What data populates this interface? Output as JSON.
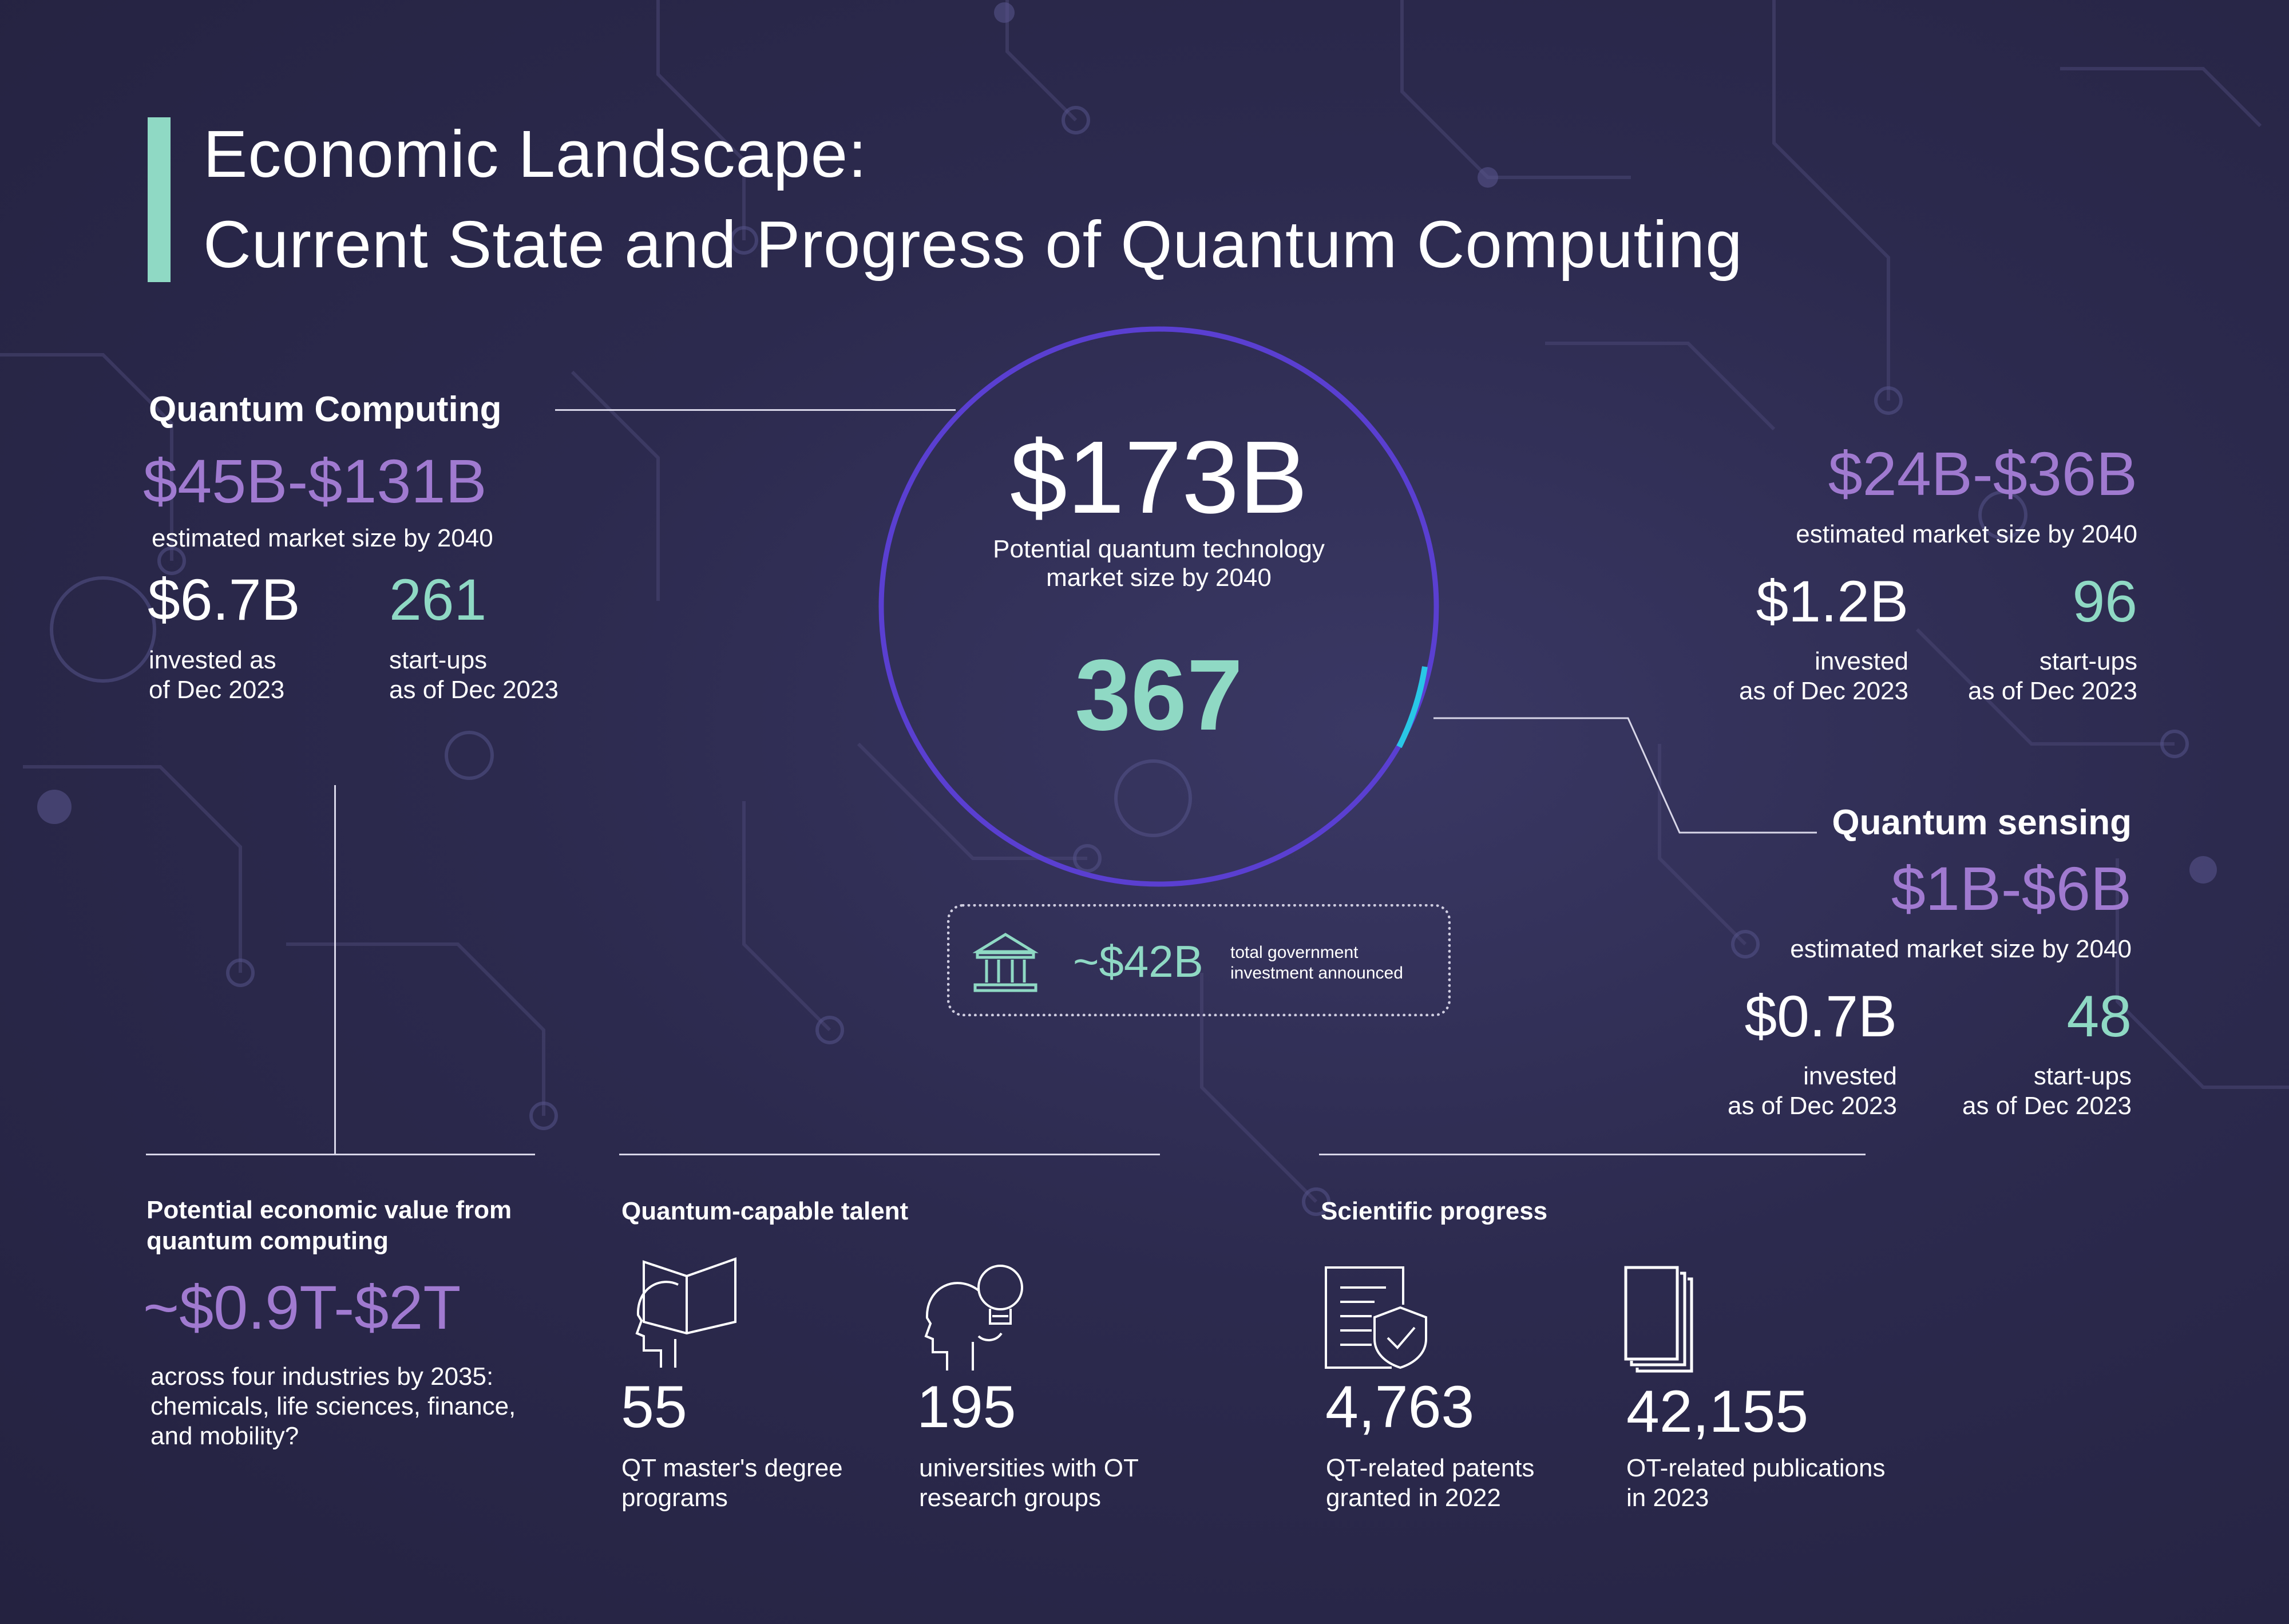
{
  "title": {
    "line1": "Economic Landscape:",
    "line2": "Current State and Progress of Quantum Computing"
  },
  "colors": {
    "accent": "#8fd9c4",
    "purple": "#a07ad0",
    "ring": "#5a3fd1",
    "ring_highlight": "#29c7e6"
  },
  "center": {
    "value": "$173B",
    "caption_line1": "Potential quantum technology",
    "caption_line2": "market size by 2040",
    "count": "367",
    "gov_icon": "bank-building-icon",
    "gov_value": "~$42B",
    "gov_caption_line1": "total government",
    "gov_caption_line2": "investment announced"
  },
  "quantum_computing": {
    "heading": "Quantum Computing",
    "range": "$45B-$131B",
    "range_caption": "estimated market size by 2040",
    "invested": "$6.7B",
    "invested_caption_line1": "invested as",
    "invested_caption_line2": "of Dec 2023",
    "startups": "261",
    "startups_caption_line1": "start-ups",
    "startups_caption_line2": "as of Dec 2023"
  },
  "quantum_communication": {
    "range": "$24B-$36B",
    "range_caption": "estimated market size by 2040",
    "invested": "$1.2B",
    "invested_caption_line1": "invested",
    "invested_caption_line2": "as of Dec 2023",
    "startups": "96",
    "startups_caption_line1": "start-ups",
    "startups_caption_line2": "as of Dec 2023"
  },
  "quantum_sensing": {
    "heading": "Quantum sensing",
    "range": "$1B-$6B",
    "range_caption": "estimated market size by 2040",
    "invested": "$0.7B",
    "invested_caption_line1": "invested",
    "invested_caption_line2": "as of Dec 2023",
    "startups": "48",
    "startups_caption_line1": "start-ups",
    "startups_caption_line2": "as of Dec 2023"
  },
  "economic_value": {
    "heading_line1": "Potential economic value from",
    "heading_line2": "quantum computing",
    "value": "~$0.9T-$2T",
    "caption_line1": "across four industries by 2035:",
    "caption_line2": "chemicals, life sciences, finance,",
    "caption_line3": "and mobility?"
  },
  "talent": {
    "heading": "Quantum-capable talent",
    "programs_icon": "head-book-icon",
    "programs_value": "55",
    "programs_caption_line1": "QT master's degree",
    "programs_caption_line2": "programs",
    "universities_icon": "head-lightbulb-icon",
    "universities_value": "195",
    "universities_caption_line1": "universities with OT",
    "universities_caption_line2": "research groups"
  },
  "scientific": {
    "heading": "Scientific progress",
    "patents_icon": "patent-document-shield-icon",
    "patents_value": "4,763",
    "patents_caption_line1": "QT-related patents",
    "patents_caption_line2": "granted in 2022",
    "publications_icon": "stacked-pages-icon",
    "publications_value": "42,155",
    "publications_caption_line1": "OT-related publications",
    "publications_caption_line2": "in 2023"
  }
}
